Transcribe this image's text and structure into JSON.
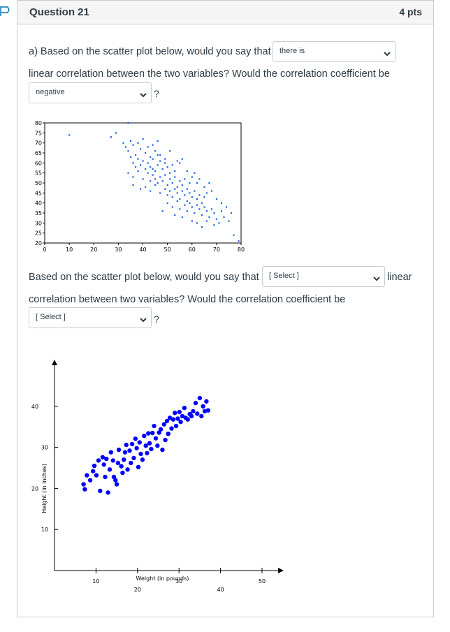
{
  "question": {
    "title": "Question 21",
    "points": "4 pts"
  },
  "part_a": {
    "sentence_start": "a) Based on the scatter plot below, would you say that",
    "select1_value": "there is",
    "sentence_mid": "linear correlation between the two variables? Would the correlation coefficient be",
    "select2_value": "negative",
    "question_mark": "?"
  },
  "part_b": {
    "sentence_start": "Based on the scatter plot below, would you say that",
    "select1_value": "[ Select ]",
    "trailing_word": "linear",
    "sentence_mid": "correlation between two variables? Would the correlation coefficient be",
    "select2_value": "[ Select ]",
    "question_mark": "?"
  },
  "icons": {
    "flag": "flag-icon",
    "dropdown": "chevron-down-icon"
  },
  "colors": {
    "plot1_points": "#1f62e0",
    "plot2_points": "#0000ff",
    "header_bg": "#f5f5f5"
  },
  "chart_data": [
    {
      "type": "scatter",
      "title": "",
      "xlabel": "",
      "ylabel": "",
      "xlim": [
        0,
        80
      ],
      "ylim": [
        20,
        80
      ],
      "xticks": [
        "0",
        "10",
        "20",
        "30",
        "40",
        "50",
        "60",
        "70",
        "80"
      ],
      "yticks": [
        "20",
        "25",
        "30",
        "35",
        "40",
        "45",
        "50",
        "55",
        "60",
        "65",
        "70",
        "75",
        "80"
      ],
      "points": [
        [
          10,
          74
        ],
        [
          27,
          73
        ],
        [
          29,
          75
        ],
        [
          34,
          80
        ],
        [
          32,
          70
        ],
        [
          33,
          68
        ],
        [
          34,
          66
        ],
        [
          35,
          71
        ],
        [
          36,
          69
        ],
        [
          37,
          64
        ],
        [
          38,
          70
        ],
        [
          39,
          67
        ],
        [
          40,
          72
        ],
        [
          41,
          65
        ],
        [
          42,
          68
        ],
        [
          43,
          63
        ],
        [
          44,
          69
        ],
        [
          45,
          66
        ],
        [
          46,
          71
        ],
        [
          47,
          64
        ],
        [
          35,
          63
        ],
        [
          36,
          60
        ],
        [
          37,
          58
        ],
        [
          38,
          62
        ],
        [
          39,
          59
        ],
        [
          40,
          61
        ],
        [
          41,
          57
        ],
        [
          42,
          60
        ],
        [
          43,
          58
        ],
        [
          44,
          62
        ],
        [
          45,
          56
        ],
        [
          46,
          59
        ],
        [
          47,
          61
        ],
        [
          48,
          57
        ],
        [
          49,
          60
        ],
        [
          50,
          58
        ],
        [
          51,
          55
        ],
        [
          52,
          59
        ],
        [
          53,
          56
        ],
        [
          54,
          61
        ],
        [
          34,
          55
        ],
        [
          36,
          53
        ],
        [
          38,
          56
        ],
        [
          40,
          52
        ],
        [
          42,
          55
        ],
        [
          43,
          51
        ],
        [
          44,
          54
        ],
        [
          45,
          52
        ],
        [
          46,
          50
        ],
        [
          47,
          53
        ],
        [
          48,
          51
        ],
        [
          49,
          54
        ],
        [
          50,
          49
        ],
        [
          51,
          52
        ],
        [
          52,
          50
        ],
        [
          53,
          53
        ],
        [
          54,
          48
        ],
        [
          55,
          51
        ],
        [
          56,
          49
        ],
        [
          57,
          52
        ],
        [
          58,
          47
        ],
        [
          59,
          50
        ],
        [
          60,
          53
        ],
        [
          41,
          48
        ],
        [
          43,
          46
        ],
        [
          45,
          49
        ],
        [
          47,
          45
        ],
        [
          49,
          47
        ],
        [
          50,
          44
        ],
        [
          51,
          46
        ],
        [
          52,
          43
        ],
        [
          53,
          47
        ],
        [
          54,
          45
        ],
        [
          55,
          42
        ],
        [
          56,
          46
        ],
        [
          57,
          44
        ],
        [
          58,
          41
        ],
        [
          59,
          45
        ],
        [
          60,
          43
        ],
        [
          61,
          46
        ],
        [
          62,
          42
        ],
        [
          63,
          44
        ],
        [
          64,
          40
        ],
        [
          65,
          43
        ],
        [
          66,
          45
        ],
        [
          50,
          40
        ],
        [
          52,
          38
        ],
        [
          54,
          41
        ],
        [
          55,
          37
        ],
        [
          57,
          39
        ],
        [
          58,
          36
        ],
        [
          59,
          40
        ],
        [
          60,
          38
        ],
        [
          61,
          35
        ],
        [
          62,
          39
        ],
        [
          63,
          37
        ],
        [
          64,
          34
        ],
        [
          65,
          38
        ],
        [
          66,
          36
        ],
        [
          67,
          33
        ],
        [
          68,
          37
        ],
        [
          69,
          35
        ],
        [
          70,
          32
        ],
        [
          48,
          36
        ],
        [
          53,
          34
        ],
        [
          56,
          33
        ],
        [
          60,
          31
        ],
        [
          62,
          30
        ],
        [
          64,
          28
        ],
        [
          66,
          31
        ],
        [
          69,
          29
        ],
        [
          71,
          30
        ],
        [
          72,
          36
        ],
        [
          73,
          33
        ],
        [
          75,
          31
        ],
        [
          74,
          38
        ],
        [
          70,
          42
        ],
        [
          72,
          40
        ],
        [
          58,
          56
        ],
        [
          55,
          60
        ],
        [
          62,
          50
        ],
        [
          65,
          48
        ],
        [
          68,
          46
        ],
        [
          36,
          49
        ],
        [
          39,
          47
        ],
        [
          44,
          57
        ],
        [
          46,
          64
        ],
        [
          49,
          62
        ],
        [
          51,
          66
        ],
        [
          56,
          62
        ],
        [
          61,
          55
        ],
        [
          63,
          52
        ],
        [
          67,
          50
        ],
        [
          76,
          35
        ],
        [
          77,
          24
        ],
        [
          79,
          21
        ]
      ]
    },
    {
      "type": "scatter",
      "title": "",
      "xlabel": "Weight (in pounds)",
      "ylabel": "Height (in inches)",
      "xlim": [
        0,
        55
      ],
      "ylim": [
        0,
        45
      ],
      "xticks": [
        "10",
        "20",
        "30",
        "40",
        "50"
      ],
      "yticks": [
        "10",
        "20",
        "30",
        "40"
      ],
      "points": [
        [
          7,
          21
        ],
        [
          7.3,
          19.8
        ],
        [
          7.8,
          23.2
        ],
        [
          8.6,
          22
        ],
        [
          9.3,
          24.2
        ],
        [
          9.6,
          25.5
        ],
        [
          10.1,
          23.2
        ],
        [
          10.6,
          26.8
        ],
        [
          11,
          19.4
        ],
        [
          11.6,
          27.6
        ],
        [
          11.9,
          25.8
        ],
        [
          12.2,
          22.8
        ],
        [
          12.5,
          27.2
        ],
        [
          12.9,
          19
        ],
        [
          13.3,
          24.6
        ],
        [
          13.6,
          28.8
        ],
        [
          14.1,
          26.8
        ],
        [
          14.3,
          22.8
        ],
        [
          14.7,
          22
        ],
        [
          15,
          21
        ],
        [
          15.3,
          26.2
        ],
        [
          15.5,
          29.4
        ],
        [
          16.1,
          25.4
        ],
        [
          16.4,
          23.8
        ],
        [
          16.7,
          27
        ],
        [
          17,
          28.8
        ],
        [
          17.3,
          30.6
        ],
        [
          17.6,
          24.6
        ],
        [
          18.1,
          29.2
        ],
        [
          18.4,
          26.2
        ],
        [
          18.7,
          30.8
        ],
        [
          19.1,
          27.4
        ],
        [
          19.5,
          32.1
        ],
        [
          19.8,
          29.8
        ],
        [
          20.2,
          25.2
        ],
        [
          20.5,
          31.2
        ],
        [
          20.8,
          28.4
        ],
        [
          21.2,
          27
        ],
        [
          21.6,
          32.8
        ],
        [
          22,
          30.4
        ],
        [
          22.3,
          28.6
        ],
        [
          22.6,
          33.4
        ],
        [
          22.9,
          31
        ],
        [
          23.3,
          29.6
        ],
        [
          23.6,
          33.5
        ],
        [
          24,
          35.2
        ],
        [
          24.4,
          32.2
        ],
        [
          24.8,
          30.4
        ],
        [
          25.2,
          33.6
        ],
        [
          25.6,
          34.4
        ],
        [
          26,
          29.4
        ],
        [
          26.4,
          35.6
        ],
        [
          26.7,
          31.8
        ],
        [
          27.1,
          36.4
        ],
        [
          27.4,
          33.3
        ],
        [
          27.8,
          37.2
        ],
        [
          28.2,
          34.6
        ],
        [
          28.6,
          36.8
        ],
        [
          29,
          38.4
        ],
        [
          29.3,
          35.2
        ],
        [
          29.7,
          37
        ],
        [
          30.1,
          38.6
        ],
        [
          30.4,
          36.2
        ],
        [
          30.8,
          37.6
        ],
        [
          31.3,
          39.6
        ],
        [
          31.6,
          37.2
        ],
        [
          32.1,
          36.8
        ],
        [
          32.6,
          38.1
        ],
        [
          33,
          37.6
        ],
        [
          33.4,
          38.8
        ],
        [
          34,
          40.8
        ],
        [
          34.4,
          38.2
        ],
        [
          35,
          42
        ],
        [
          35.4,
          37.6
        ],
        [
          35.8,
          40
        ],
        [
          36.2,
          38.8
        ],
        [
          36.6,
          41.2
        ],
        [
          37,
          39
        ]
      ]
    }
  ]
}
